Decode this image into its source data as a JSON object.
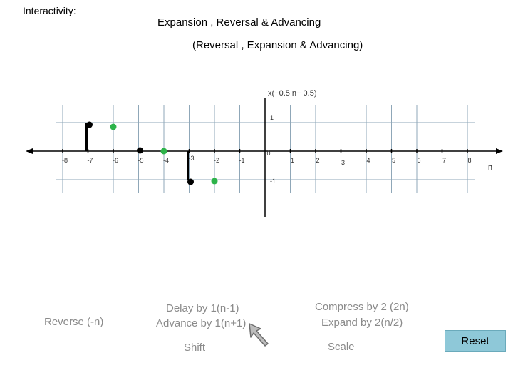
{
  "header": {
    "interactivity_label": "Interactivity:",
    "title": "Expansion , Reversal & Advancing",
    "subtitle": "(Reversal , Expansion & Advancing)"
  },
  "chart_data": {
    "type": "scatter",
    "title": "x(−0.5 n− 0.5)",
    "xlabel": "n",
    "x_ticks": [
      "-8",
      "-7",
      "-6",
      "-5",
      "-4",
      "-3",
      "-2",
      "-1",
      "0",
      "1",
      "2",
      "3",
      "4",
      "5",
      "6",
      "7",
      "8"
    ],
    "y_ticks": [
      "1",
      "0",
      "-1"
    ],
    "xlim": [
      -8,
      8
    ],
    "ylim": [
      -1,
      1
    ],
    "grid": true,
    "series": [
      {
        "color": "#000000",
        "stem": true,
        "x": [
          -7,
          -5,
          -3
        ],
        "y": [
          1,
          0,
          -1
        ]
      },
      {
        "color": "#2db34a",
        "stem": false,
        "x": [
          -6,
          -4,
          -2
        ],
        "y": [
          1,
          0,
          -1
        ]
      }
    ]
  },
  "controls": {
    "reverse_label": "Reverse (-n)",
    "delay_label": "Delay by 1(n-1)",
    "advance_label": "Advance by 1(n+1)",
    "shift_label": "Shift",
    "compress_label": "Compress by 2 (2n)",
    "expand_label": "Expand by 2(n/2)",
    "scale_label": "Scale",
    "reset_label": "Reset"
  },
  "icons": {
    "cursor": "arrow-cursor-icon"
  }
}
